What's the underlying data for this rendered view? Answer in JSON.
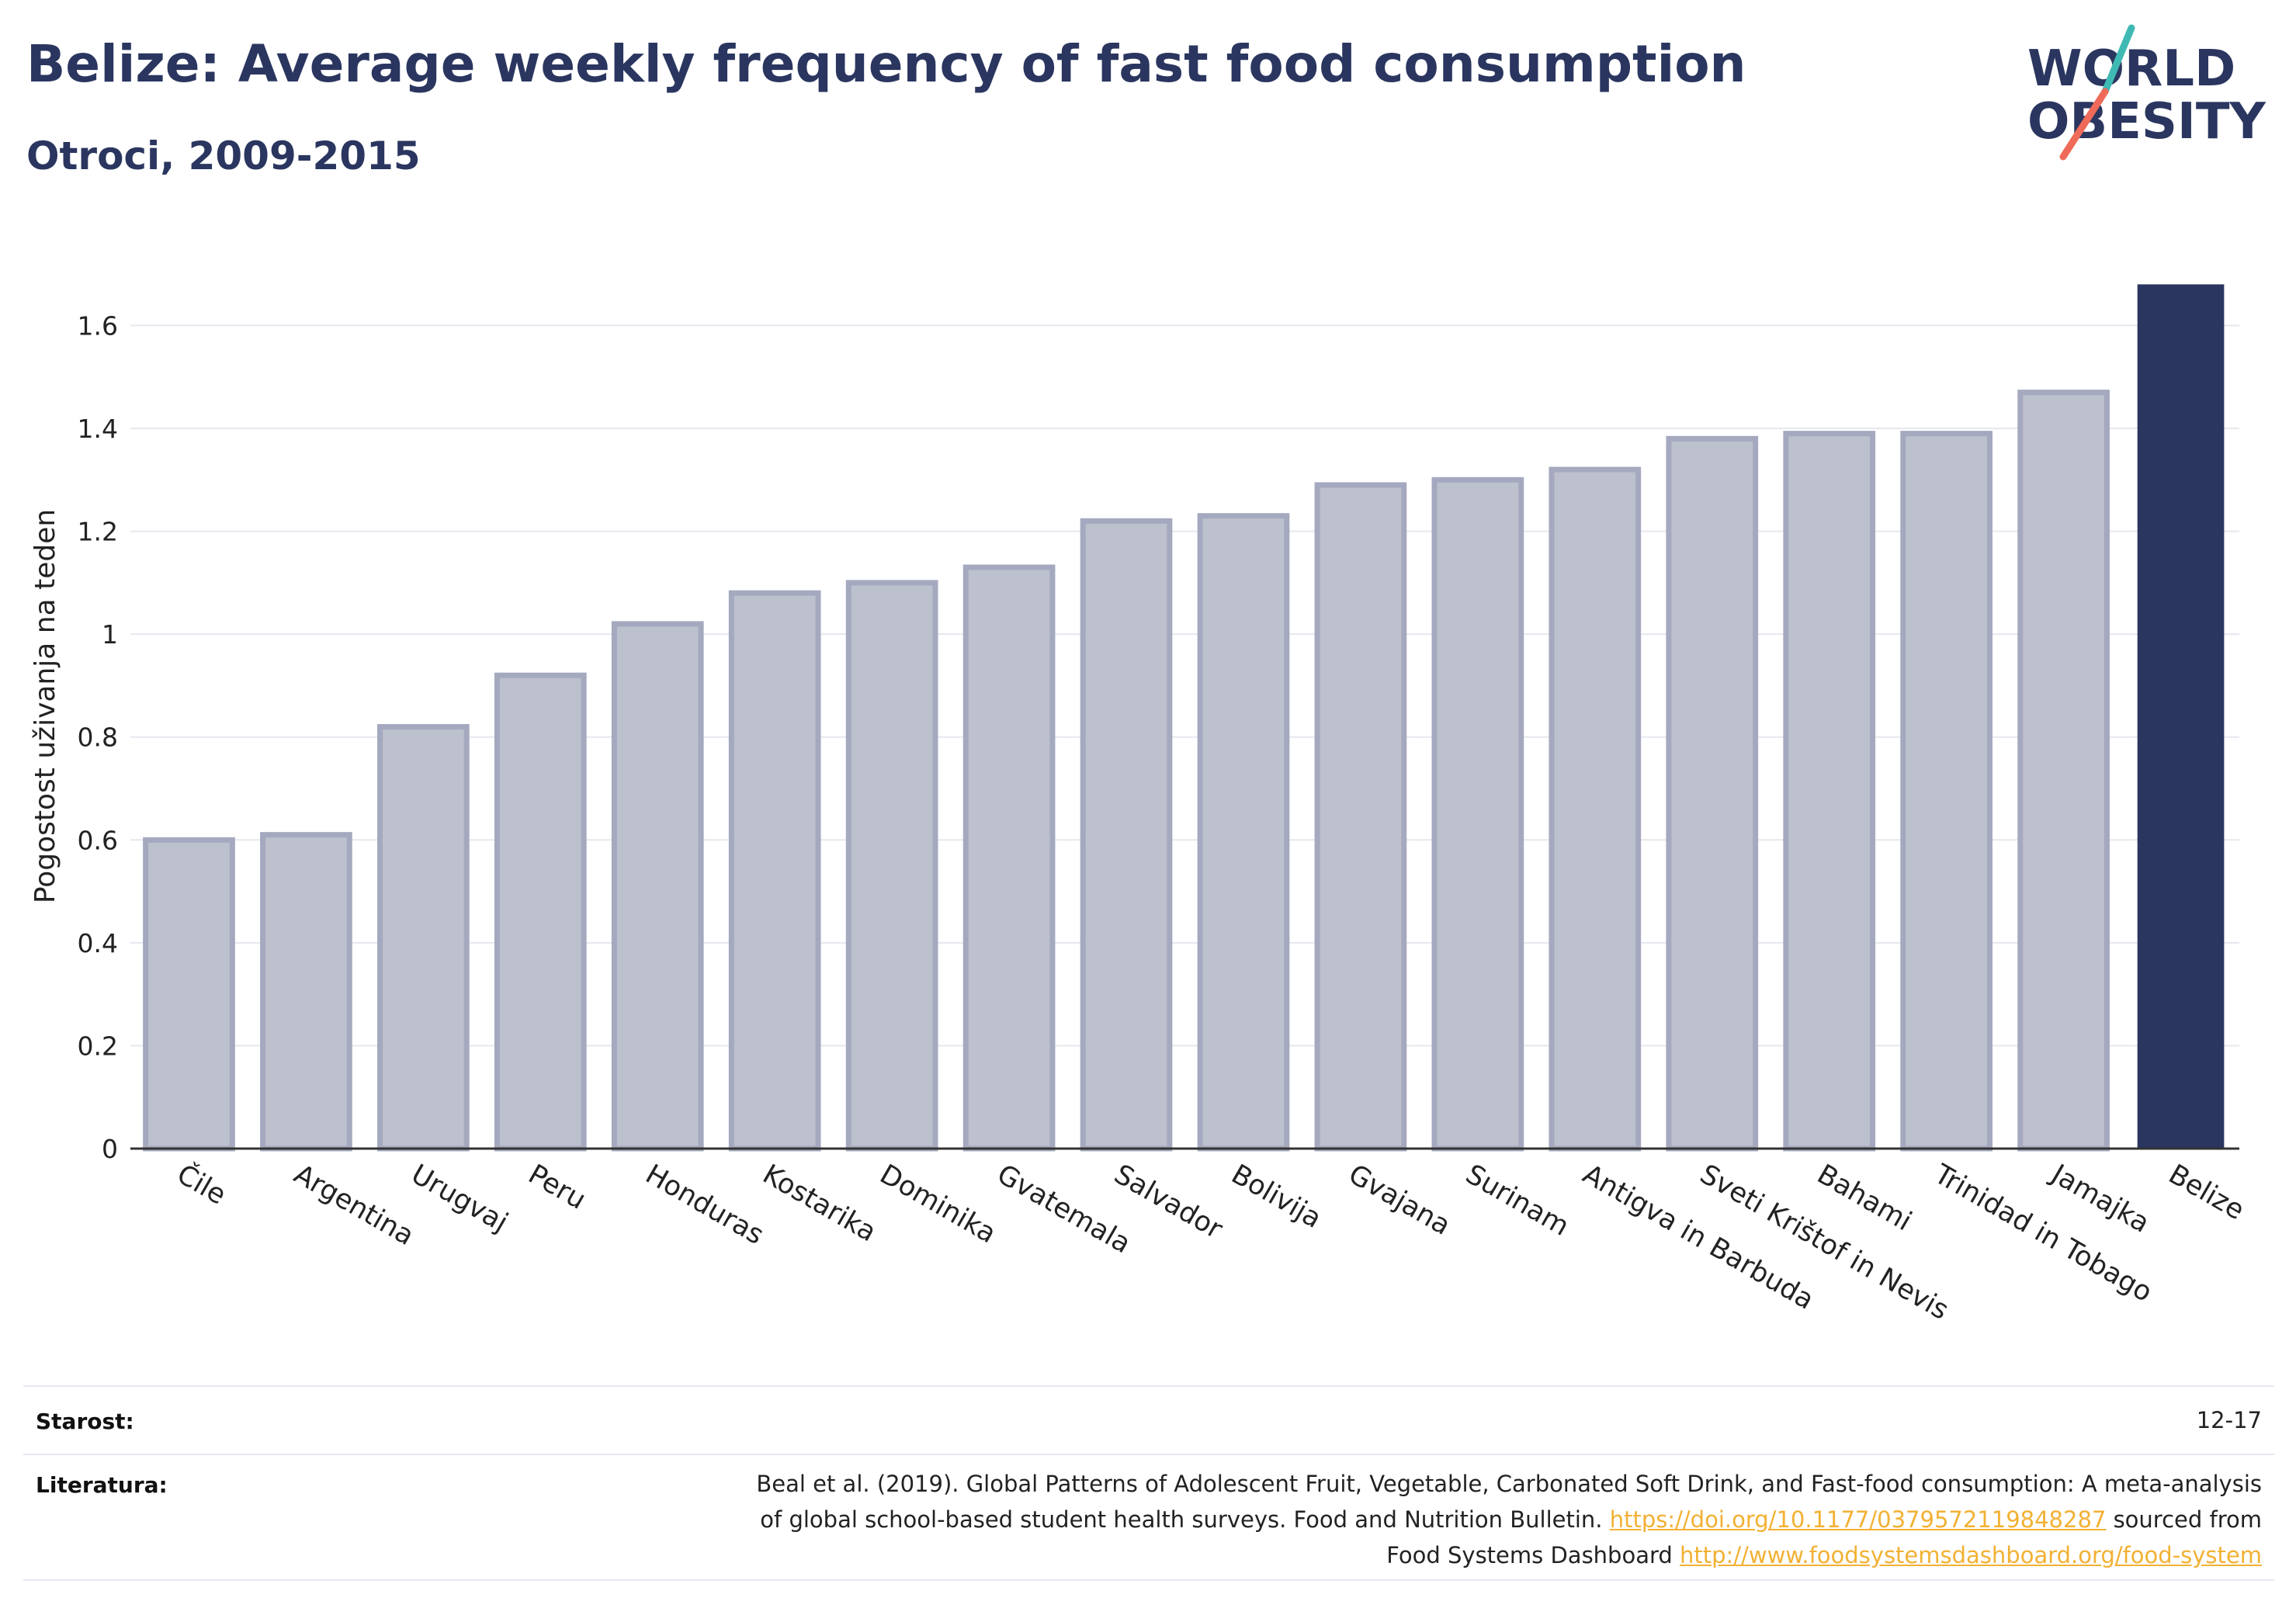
{
  "header": {
    "title": "Belize: Average weekly frequency of fast food consumption",
    "subtitle": "Otroci, 2009-2015"
  },
  "logo": {
    "line1": "WORLD",
    "line2": "OBESITY"
  },
  "chart_data": {
    "type": "bar",
    "categories": [
      "Čile",
      "Argentina",
      "Urugvaj",
      "Peru",
      "Honduras",
      "Kostarika",
      "Dominika",
      "Gvatemala",
      "Salvador",
      "Bolivija",
      "Gvajana",
      "Surinam",
      "Antigva in Barbuda",
      "Sveti Krištof in Nevis",
      "Bahami",
      "Trinidad in Tobago",
      "Jamajka",
      "Belize"
    ],
    "values": [
      0.6,
      0.61,
      0.82,
      0.92,
      1.02,
      1.08,
      1.1,
      1.13,
      1.22,
      1.23,
      1.29,
      1.3,
      1.32,
      1.38,
      1.39,
      1.39,
      1.47,
      1.68
    ],
    "highlight": "Belize",
    "ylabel": "Pogostost uživanja na teden",
    "xlabel": "",
    "ylim": [
      0,
      1.75
    ],
    "yticks": [
      0,
      0.2,
      0.4,
      0.6,
      0.8,
      1,
      1.2,
      1.4,
      1.6
    ],
    "ytick_labels": [
      "0",
      "0.2",
      "0.4",
      "0.6",
      "0.8",
      "1",
      "1.2",
      "1.4",
      "1.6"
    ],
    "grid": true,
    "colors": {
      "highlight": "#2a365f",
      "bar": "#bdc0cd",
      "bar_border": "#a5a9bf"
    }
  },
  "info": {
    "age_label": "Starost:",
    "age_value": "12-17",
    "ref_label": "Literatura:",
    "ref_line1": "Beal et al. (2019). Global Patterns of Adolescent Fruit, Vegetable, Carbonated Soft Drink, and Fast-food consumption: A meta-analysis",
    "ref_line2_text": "of global school-based student health surveys. Food and Nutrition Bulletin.",
    "ref_doi": "https://doi.org/10.1177/0379572119848287",
    "ref_line2_tail": "sourced from",
    "ref_line3_text": "Food Systems Dashboard",
    "ref_url": "http://www.foodsystemsdashboard.org/food-system"
  }
}
